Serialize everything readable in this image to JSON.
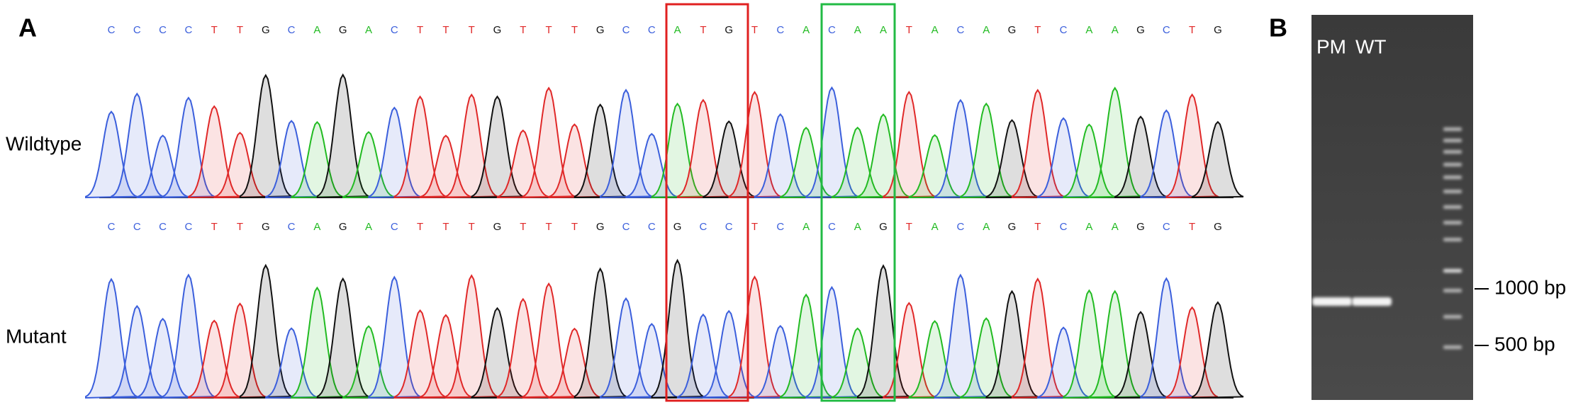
{
  "panel_a": {
    "label": "A",
    "rows": [
      {
        "label": "Wildtype",
        "bases": [
          "C",
          "C",
          "C",
          "C",
          "T",
          "T",
          "G",
          "C",
          "A",
          "G",
          "A",
          "C",
          "T",
          "T",
          "T",
          "G",
          "T",
          "T",
          "T",
          "G",
          "C",
          "C",
          "A",
          "T",
          "G",
          "T",
          "C",
          "A",
          "C",
          "A",
          "A",
          "T",
          "A",
          "C",
          "A",
          "G",
          "T",
          "C",
          "A",
          "A",
          "G",
          "C",
          "T",
          "G"
        ]
      },
      {
        "label": "Mutant",
        "bases": [
          "C",
          "C",
          "C",
          "C",
          "T",
          "T",
          "G",
          "C",
          "A",
          "G",
          "A",
          "C",
          "T",
          "T",
          "T",
          "G",
          "T",
          "T",
          "T",
          "G",
          "C",
          "C",
          "G",
          "C",
          "C",
          "T",
          "C",
          "A",
          "C",
          "A",
          "G",
          "T",
          "A",
          "C",
          "A",
          "G",
          "T",
          "C",
          "A",
          "A",
          "G",
          "C",
          "T",
          "G"
        ]
      }
    ]
  },
  "panel_b": {
    "label": "B",
    "lanes": [
      "PM",
      "WT"
    ],
    "markers": [
      "1000 bp",
      "500 bp"
    ]
  }
}
